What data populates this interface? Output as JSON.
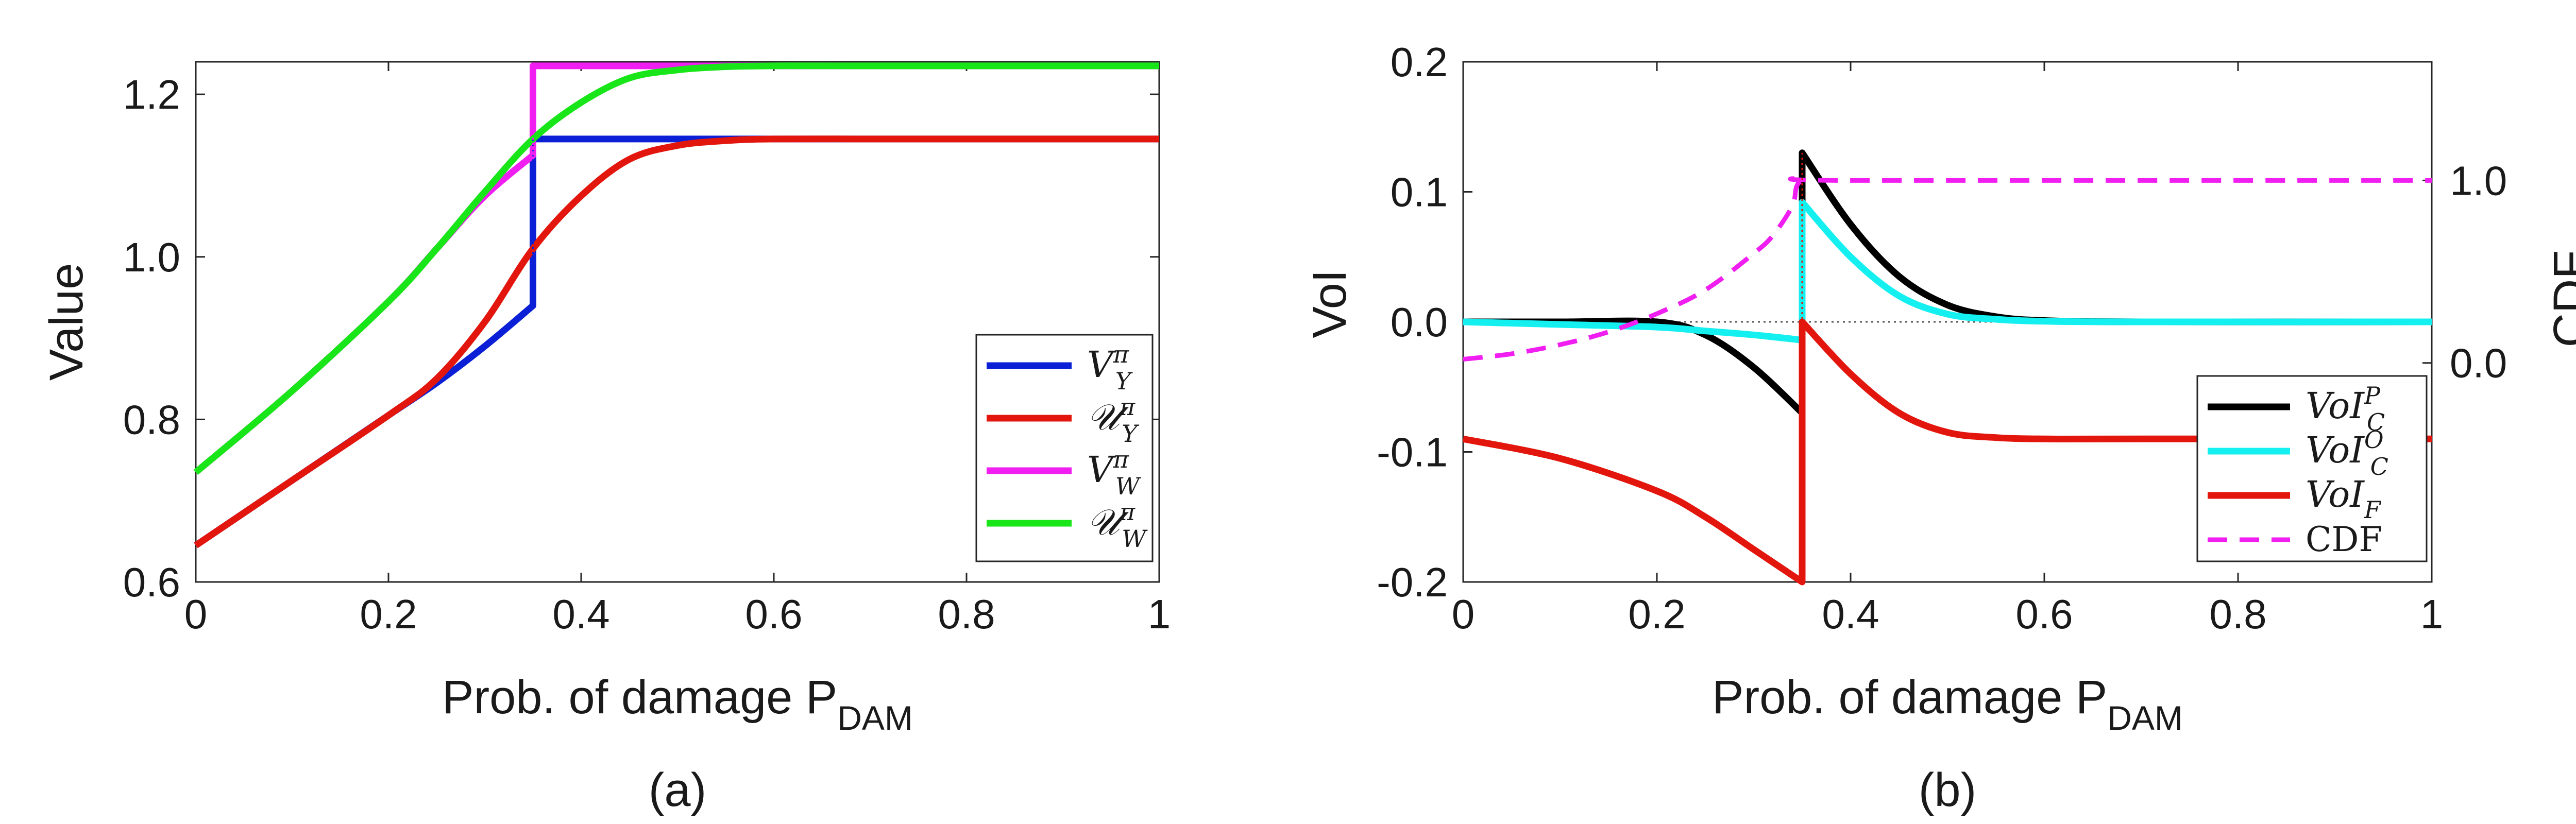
{
  "figure": {
    "panels": [
      {
        "caption": "(a)",
        "chart_data": {
          "type": "line",
          "xlabel": "Prob. of damage P",
          "xlabel_subscript": "DAM",
          "ylabel": "Value",
          "xlim": [
            0,
            1
          ],
          "ylim": [
            0.6,
            1.24
          ],
          "xticks": [
            0,
            0.2,
            0.4,
            0.6,
            0.8,
            1
          ],
          "xtick_labels": [
            "0",
            "0.2",
            "0.4",
            "0.6",
            "0.8",
            "1"
          ],
          "yticks": [
            0.6,
            0.8,
            1.0,
            1.2
          ],
          "ytick_labels": [
            "0.6",
            "0.8",
            "1.0",
            "1.2"
          ],
          "legend_position": "bottom-right",
          "series": [
            {
              "name": "V_Y^π",
              "legend_main": "V",
              "legend_sub": "Y",
              "legend_sup": "π",
              "color": "#0a1fd6",
              "x": [
                0,
                0.1,
                0.2,
                0.25,
                0.3,
                0.35,
                0.35,
                1
              ],
              "y": [
                0.645,
                0.725,
                0.805,
                0.845,
                0.89,
                0.94,
                1.145,
                1.145
              ]
            },
            {
              "name": "U_Y^π",
              "legend_main": "𝒰",
              "legend_sub": "Y",
              "legend_sup": "π",
              "color": "#e3160e",
              "x": [
                0,
                0.1,
                0.2,
                0.25,
                0.3,
                0.35,
                0.4,
                0.45,
                0.5,
                0.55,
                0.6,
                0.7,
                0.8,
                1
              ],
              "y": [
                0.645,
                0.725,
                0.805,
                0.85,
                0.92,
                1.01,
                1.075,
                1.12,
                1.137,
                1.143,
                1.145,
                1.145,
                1.145,
                1.145
              ]
            },
            {
              "name": "V_W^π",
              "legend_main": "V",
              "legend_sub": "W",
              "legend_sup": "π",
              "color": "#f01ef0",
              "x": [
                0,
                0.1,
                0.2,
                0.25,
                0.3,
                0.35,
                0.35,
                1
              ],
              "y": [
                0.735,
                0.835,
                0.945,
                1.01,
                1.075,
                1.125,
                1.235,
                1.235
              ]
            },
            {
              "name": "U_W^π",
              "legend_main": "𝒰",
              "legend_sub": "W",
              "legend_sup": "π",
              "color": "#19e619",
              "x": [
                0,
                0.1,
                0.2,
                0.25,
                0.3,
                0.35,
                0.4,
                0.45,
                0.5,
                0.55,
                0.6,
                0.7,
                1
              ],
              "y": [
                0.735,
                0.835,
                0.945,
                1.01,
                1.08,
                1.145,
                1.19,
                1.22,
                1.23,
                1.234,
                1.235,
                1.235,
                1.235
              ]
            }
          ]
        }
      },
      {
        "caption": "(b)",
        "chart_data": {
          "type": "line",
          "xlabel": "Prob. of damage P",
          "xlabel_subscript": "DAM",
          "ylabel": "VoI",
          "ylabel_right": "CDF",
          "xlim": [
            0,
            1
          ],
          "ylim": [
            -0.2,
            0.2
          ],
          "ylim_right": [
            -1.2,
            1.65
          ],
          "xticks": [
            0,
            0.2,
            0.4,
            0.6,
            0.8,
            1
          ],
          "xtick_labels": [
            "0",
            "0.2",
            "0.4",
            "0.6",
            "0.8",
            "1"
          ],
          "yticks": [
            -0.2,
            -0.1,
            0.0,
            0.1,
            0.2
          ],
          "ytick_labels": [
            "-0.2",
            "-0.1",
            "0.0",
            "0.1",
            "0.2"
          ],
          "yticks_right": [
            0.0,
            1.0
          ],
          "ytick_labels_right": [
            "0.0",
            "1.0"
          ],
          "legend_position": "bottom-right",
          "series": [
            {
              "name": "VoI_C^P",
              "legend_main": "VoI",
              "legend_sub": "C",
              "legend_sup": "P",
              "color": "#000000",
              "style": "solid",
              "x": [
                0,
                0.1,
                0.2,
                0.25,
                0.3,
                0.35,
                0.35,
                0.4,
                0.45,
                0.5,
                0.55,
                0.6,
                0.7,
                1
              ],
              "y": [
                0,
                0,
                0,
                -0.01,
                -0.035,
                -0.07,
                0.13,
                0.075,
                0.035,
                0.013,
                0.004,
                0.001,
                0,
                0
              ]
            },
            {
              "name": "VoI_C^O",
              "legend_main": "VoI",
              "legend_sub": "C",
              "legend_sup": "O",
              "color": "#14f0f0",
              "style": "solid",
              "x": [
                0,
                0.1,
                0.2,
                0.25,
                0.3,
                0.35,
                0.35,
                0.4,
                0.45,
                0.5,
                0.55,
                0.6,
                0.7,
                1
              ],
              "y": [
                0,
                -0.002,
                -0.004,
                -0.007,
                -0.01,
                -0.014,
                0.092,
                0.05,
                0.02,
                0.006,
                0.002,
                0.0005,
                0,
                0
              ]
            },
            {
              "name": "VoI_F",
              "legend_main": "VoI",
              "legend_sub": "F",
              "legend_sup": "",
              "color": "#e3160e",
              "style": "solid",
              "x": [
                0,
                0.1,
                0.2,
                0.25,
                0.3,
                0.35,
                0.35,
                0.4,
                0.45,
                0.5,
                0.55,
                0.6,
                0.7,
                1
              ],
              "y": [
                -0.09,
                -0.105,
                -0.13,
                -0.15,
                -0.175,
                -0.2,
                0,
                -0.04,
                -0.07,
                -0.085,
                -0.089,
                -0.09,
                -0.09,
                -0.09
              ]
            },
            {
              "name": "CDF",
              "legend_main": "CDF",
              "legend_sub": "",
              "legend_sup": "",
              "color": "#f01ef0",
              "style": "dashed",
              "axis": "right",
              "x": [
                0,
                0.05,
                0.1,
                0.15,
                0.2,
                0.25,
                0.3,
                0.32,
                0.34,
                0.35,
                0.4,
                1
              ],
              "y": [
                0.02,
                0.05,
                0.1,
                0.17,
                0.27,
                0.4,
                0.6,
                0.7,
                0.86,
                1.0,
                1.0,
                1.0
              ]
            }
          ]
        }
      }
    ]
  }
}
